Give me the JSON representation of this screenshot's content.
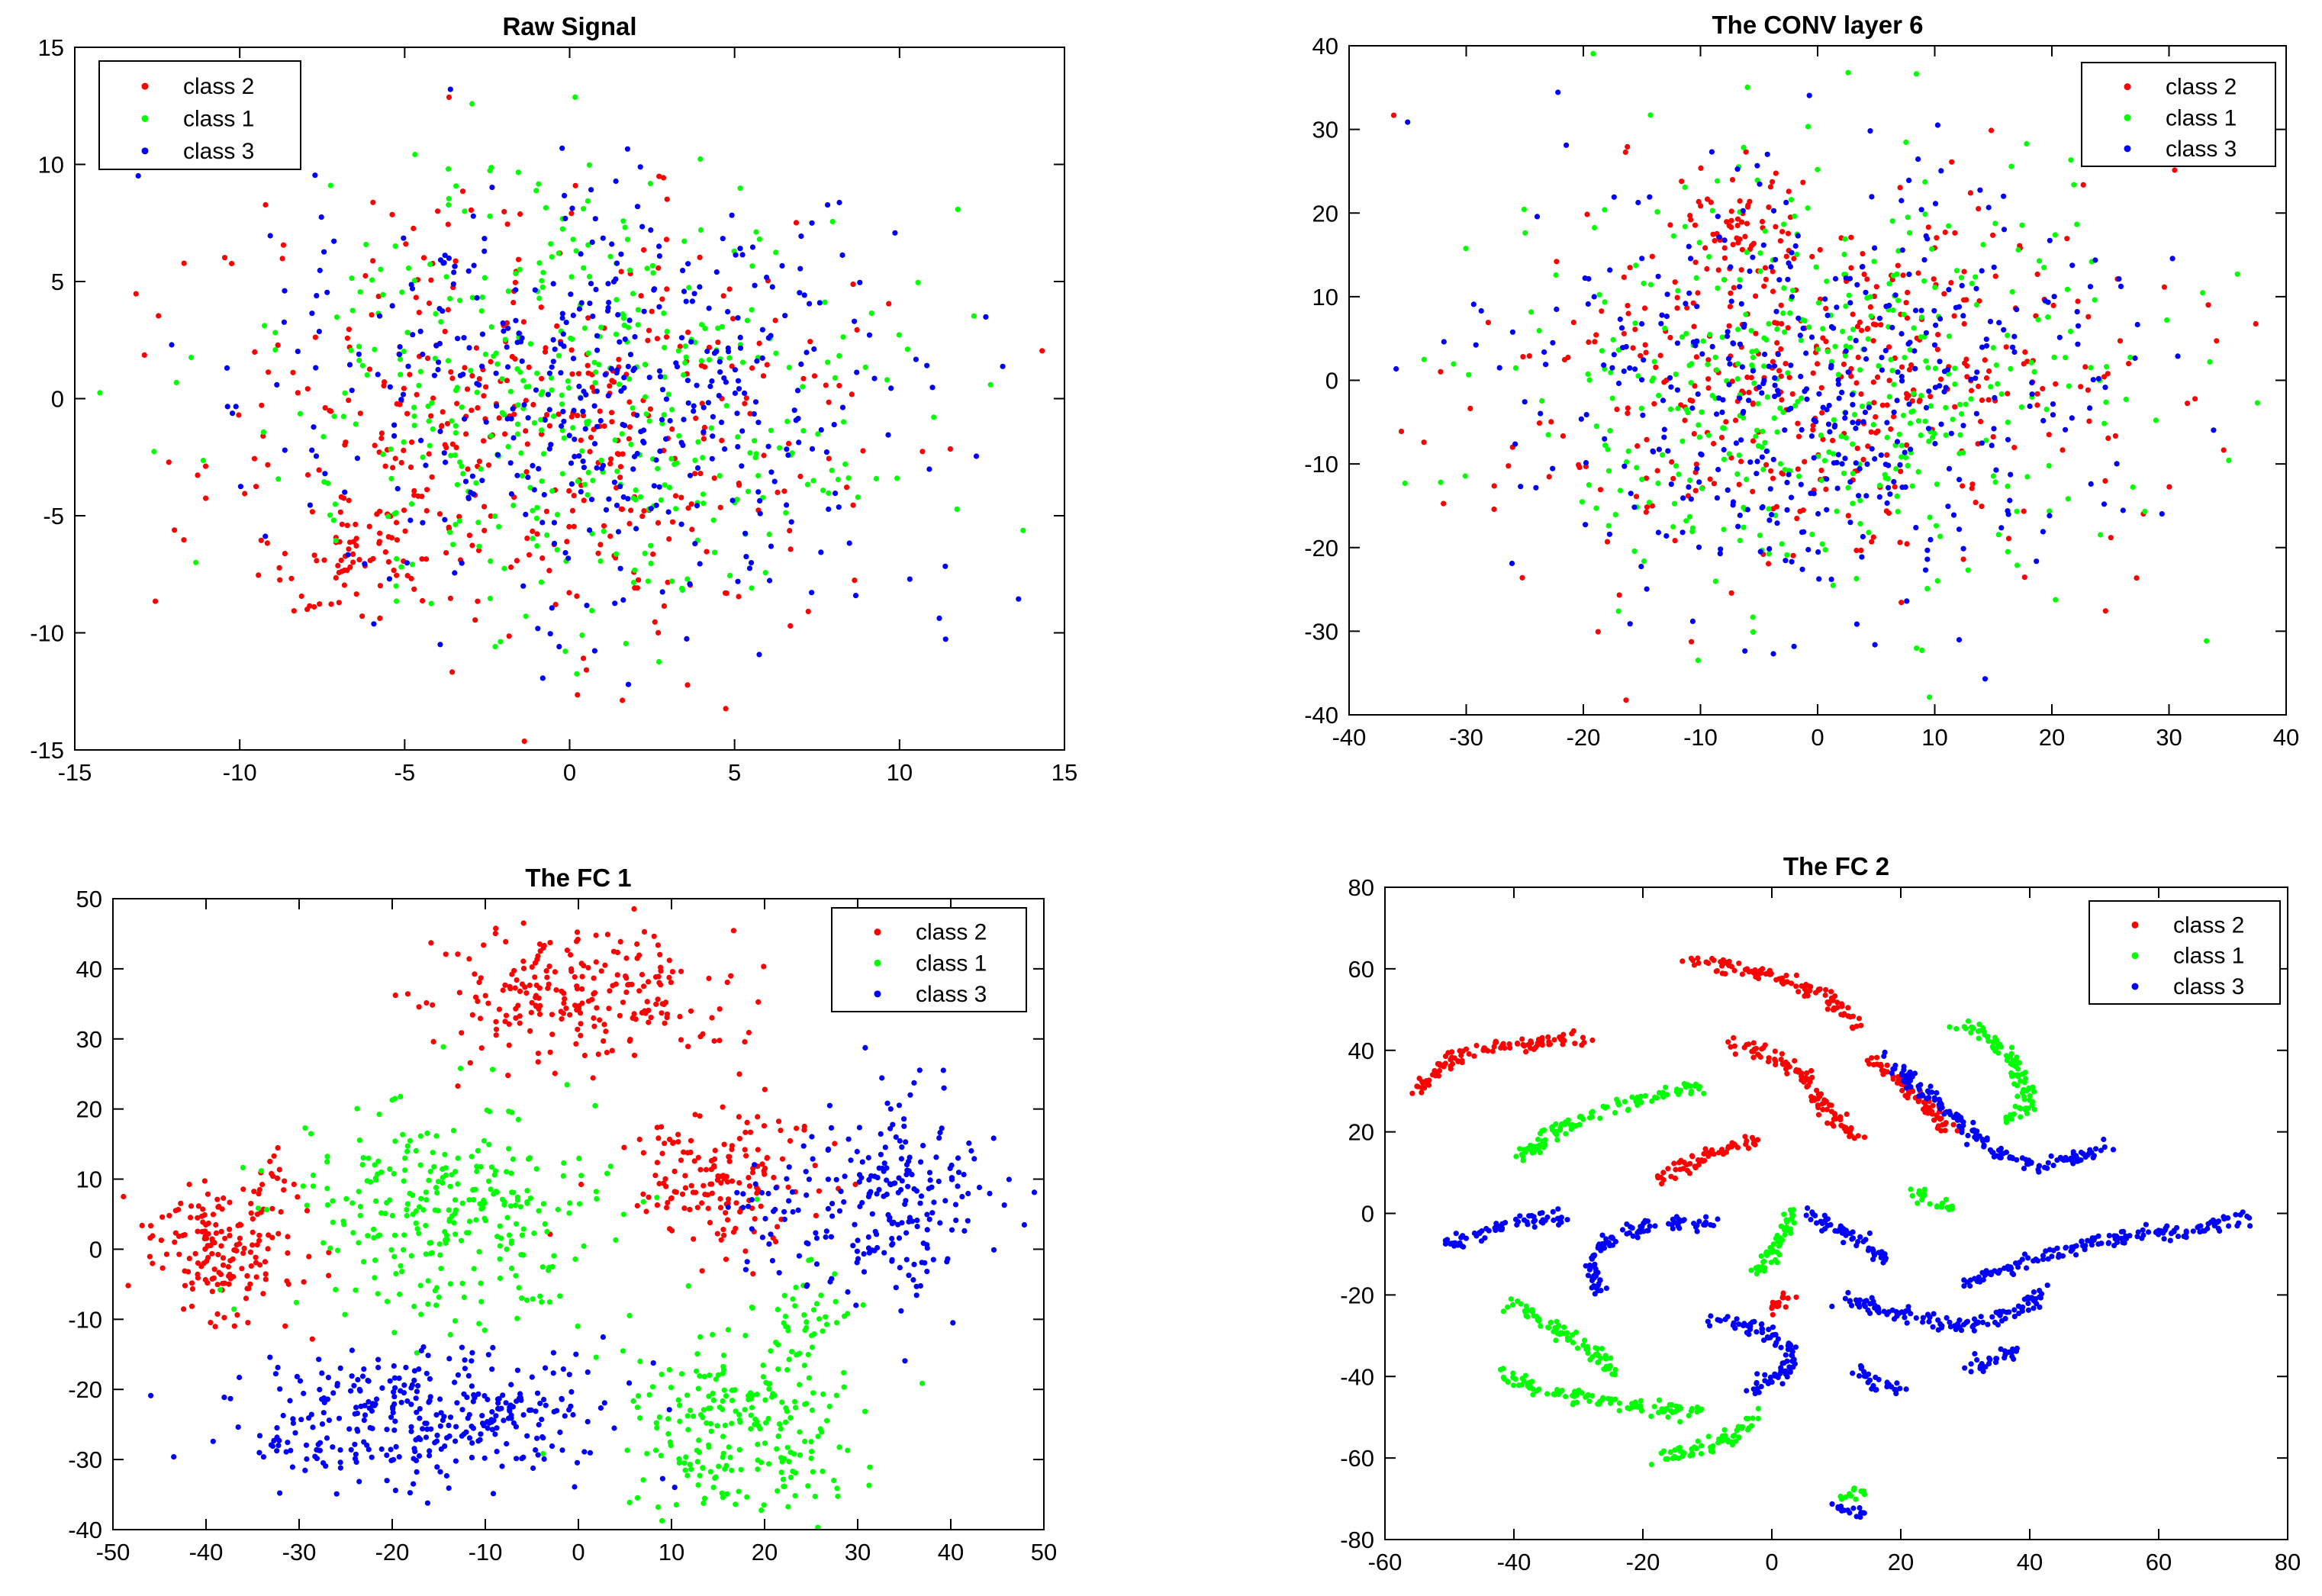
{
  "figure": {
    "background": "#ffffff",
    "class_colors": {
      "class 2": "#ff0000",
      "class 1": "#00ff00",
      "class 3": "#0000ff"
    }
  },
  "chart_data": [
    {
      "type": "scatter",
      "title": "Raw Signal",
      "xlabel": "",
      "ylabel": "",
      "xlim": [
        -15,
        15
      ],
      "ylim": [
        -15,
        15
      ],
      "xticks": [
        -15,
        -10,
        -5,
        0,
        5,
        10,
        15
      ],
      "yticks": [
        -15,
        -10,
        -5,
        0,
        5,
        10,
        15
      ],
      "xtick_labels": [
        "-15",
        "-10",
        "-5",
        "0",
        "5",
        "10",
        "15"
      ],
      "ytick_labels": [
        "-15",
        "-10",
        "-5",
        "0",
        "5",
        "10",
        "15"
      ],
      "grid": false,
      "legend_placement": "top-left",
      "legend": [
        "class 2",
        "class 1",
        "class 3"
      ],
      "series": [
        {
          "name": "class 2",
          "color": "#ff0000",
          "clusters": [
            {
              "cx": -1,
              "cy": -1,
              "sx": 4.8,
              "sy": 4.6,
              "n": 420
            },
            {
              "cx": -6.5,
              "cy": -6.5,
              "sx": 1.2,
              "sy": 1.2,
              "n": 60
            }
          ]
        },
        {
          "name": "class 1",
          "color": "#00ff00",
          "clusters": [
            {
              "cx": 0,
              "cy": 0,
              "sx": 4.8,
              "sy": 4.6,
              "n": 420
            }
          ]
        },
        {
          "name": "class 3",
          "color": "#0000ff",
          "clusters": [
            {
              "cx": 1,
              "cy": 0,
              "sx": 4.8,
              "sy": 4.6,
              "n": 450
            }
          ]
        }
      ]
    },
    {
      "type": "scatter",
      "title": "The CONV layer 6",
      "xlabel": "",
      "ylabel": "",
      "xlim": [
        -40,
        40
      ],
      "ylim": [
        -40,
        40
      ],
      "xticks": [
        -40,
        -30,
        -20,
        -10,
        0,
        10,
        20,
        30,
        40
      ],
      "yticks": [
        -40,
        -30,
        -20,
        -10,
        0,
        10,
        20,
        30,
        40
      ],
      "xtick_labels": [
        "-40",
        "-30",
        "-20",
        "-10",
        "0",
        "10",
        "20",
        "30",
        "40"
      ],
      "ytick_labels": [
        "-40",
        "-30",
        "-20",
        "-10",
        "0",
        "10",
        "20",
        "30",
        "40"
      ],
      "grid": false,
      "legend_placement": "top-right",
      "legend": [
        "class 2",
        "class 1",
        "class 3"
      ],
      "series": [
        {
          "name": "class 2",
          "color": "#ff0000",
          "clusters": [
            {
              "cx": 0,
              "cy": 0,
              "sx": 13,
              "sy": 12,
              "n": 420
            },
            {
              "cx": -8,
              "cy": 17,
              "sx": 2.5,
              "sy": 3,
              "n": 50
            }
          ]
        },
        {
          "name": "class 1",
          "color": "#00ff00",
          "clusters": [
            {
              "cx": 0,
              "cy": 0,
              "sx": 13,
              "sy": 12,
              "n": 430
            }
          ]
        },
        {
          "name": "class 3",
          "color": "#0000ff",
          "clusters": [
            {
              "cx": 0,
              "cy": 0,
              "sx": 13,
              "sy": 12,
              "n": 450
            }
          ]
        }
      ]
    },
    {
      "type": "scatter",
      "title": "The FC 1",
      "xlabel": "",
      "ylabel": "",
      "xlim": [
        -50,
        50
      ],
      "ylim": [
        -40,
        50
      ],
      "xticks": [
        -50,
        -40,
        -30,
        -20,
        -10,
        0,
        10,
        20,
        30,
        40,
        50
      ],
      "yticks": [
        -40,
        -30,
        -20,
        -10,
        0,
        10,
        20,
        30,
        40,
        50
      ],
      "xtick_labels": [
        "-50",
        "-40",
        "-30",
        "-20",
        "-10",
        "0",
        "10",
        "20",
        "30",
        "40",
        "50"
      ],
      "ytick_labels": [
        "-40",
        "-30",
        "-20",
        "-10",
        "0",
        "10",
        "20",
        "30",
        "40",
        "50"
      ],
      "grid": false,
      "legend_placement": "top-right",
      "legend": [
        "class 2",
        "class 1",
        "class 3"
      ],
      "series": [
        {
          "name": "class 2",
          "color": "#ff0000",
          "clusters": [
            {
              "cx": 0,
              "cy": 36,
              "sx": 8,
              "sy": 5,
              "n": 230
            },
            {
              "cx": 15,
              "cy": 10,
              "sx": 6,
              "sy": 5,
              "n": 160
            },
            {
              "cx": -38,
              "cy": -1,
              "sx": 4,
              "sy": 5,
              "n": 170
            },
            {
              "cx": -32,
              "cy": 10,
              "sx": 1.5,
              "sy": 2,
              "n": 12
            }
          ]
        },
        {
          "name": "class 1",
          "color": "#00ff00",
          "clusters": [
            {
              "cx": -13,
              "cy": 5,
              "sx": 8,
              "sy": 8,
              "n": 300
            },
            {
              "cx": 18,
              "cy": -25,
              "sx": 6,
              "sy": 6,
              "n": 230
            },
            {
              "cx": 24,
              "cy": -10,
              "sx": 3,
              "sy": 4,
              "n": 40
            }
          ]
        },
        {
          "name": "class 3",
          "color": "#0000ff",
          "clusters": [
            {
              "cx": -15,
              "cy": -24,
              "sx": 10,
              "sy": 5,
              "n": 330
            },
            {
              "cx": 35,
              "cy": 8,
              "sx": 5,
              "sy": 7,
              "n": 190
            },
            {
              "cx": 22,
              "cy": 5,
              "sx": 4,
              "sy": 6,
              "n": 50
            },
            {
              "cx": -30,
              "cy": -29,
              "sx": 2,
              "sy": 1.5,
              "n": 20
            }
          ]
        }
      ]
    },
    {
      "type": "scatter",
      "title": "The FC 2",
      "xlabel": "",
      "ylabel": "",
      "xlim": [
        -60,
        80
      ],
      "ylim": [
        -80,
        80
      ],
      "xticks": [
        -60,
        -40,
        -20,
        0,
        20,
        40,
        60,
        80
      ],
      "yticks": [
        -80,
        -60,
        -40,
        -20,
        0,
        20,
        40,
        60,
        80
      ],
      "xtick_labels": [
        "-60",
        "-40",
        "-20",
        "0",
        "20",
        "40",
        "60",
        "80"
      ],
      "ytick_labels": [
        "-80",
        "-60",
        "-40",
        "-20",
        "0",
        "20",
        "40",
        "60",
        "80"
      ],
      "grid": false,
      "legend_placement": "top-right",
      "legend": [
        "class 2",
        "class 1",
        "class 3"
      ],
      "series": [
        {
          "name": "class 2",
          "color": "#ff0000",
          "curves": [
            [
              [
                -55,
                30
              ],
              [
                -50,
                38
              ],
              [
                -44,
                41
              ],
              [
                -36,
                42
              ],
              [
                -28,
                43
              ]
            ],
            [
              [
                -18,
                9
              ],
              [
                -14,
                11
              ],
              [
                -10,
                14
              ],
              [
                -5,
                17
              ],
              [
                -2,
                18
              ]
            ],
            [
              [
                -13,
                62
              ],
              [
                -6,
                61
              ],
              [
                2,
                58
              ],
              [
                9,
                53
              ],
              [
                13,
                46
              ]
            ],
            [
              [
                -7,
                42
              ],
              [
                0,
                39
              ],
              [
                5,
                33
              ],
              [
                9,
                25
              ],
              [
                13,
                18
              ]
            ],
            [
              [
                15,
                38
              ],
              [
                20,
                33
              ],
              [
                24,
                26
              ],
              [
                28,
                20
              ]
            ],
            [
              [
                -1,
                -24
              ],
              [
                1,
                -22
              ],
              [
                3,
                -20
              ]
            ]
          ]
        },
        {
          "name": "class 1",
          "color": "#00ff00",
          "curves": [
            [
              [
                -40,
                13
              ],
              [
                -33,
                21
              ],
              [
                -25,
                26
              ],
              [
                -18,
                29
              ],
              [
                -11,
                31
              ]
            ],
            [
              [
                -40,
                -22
              ],
              [
                -34,
                -28
              ],
              [
                -28,
                -34
              ],
              [
                -24,
                -40
              ]
            ],
            [
              [
                -42,
                -40
              ],
              [
                -34,
                -44
              ],
              [
                -26,
                -46
              ],
              [
                -18,
                -48
              ],
              [
                -10,
                -49
              ]
            ],
            [
              [
                -19,
                -60
              ],
              [
                -12,
                -58
              ],
              [
                -6,
                -55
              ],
              [
                -2,
                -50
              ]
            ],
            [
              [
                -3,
                -15
              ],
              [
                0,
                -10
              ],
              [
                2,
                -4
              ],
              [
                3,
                1
              ]
            ],
            [
              [
                29,
                46
              ],
              [
                33,
                44
              ],
              [
                37,
                38
              ],
              [
                39,
                32
              ],
              [
                40,
                26
              ],
              [
                36,
                23
              ]
            ],
            [
              [
                22,
                5
              ],
              [
                25,
                3
              ],
              [
                28,
                2
              ]
            ],
            [
              [
                11,
                -70
              ],
              [
                13,
                -69
              ],
              [
                14,
                -68
              ]
            ]
          ]
        },
        {
          "name": "class 3",
          "color": "#0000ff",
          "curves": [
            [
              [
                -50,
                -8
              ],
              [
                -45,
                -5
              ],
              [
                -40,
                -2
              ],
              [
                -35,
                -1
              ],
              [
                -32,
                0
              ]
            ],
            [
              [
                -27,
                -20
              ],
              [
                -28,
                -11
              ],
              [
                -25,
                -6
              ],
              [
                -20,
                -3
              ],
              [
                -14,
                -2
              ],
              [
                -9,
                -2
              ]
            ],
            [
              [
                17,
                38
              ],
              [
                23,
                31
              ],
              [
                29,
                23
              ],
              [
                35,
                15
              ],
              [
                41,
                12
              ],
              [
                47,
                14
              ],
              [
                53,
                16
              ]
            ],
            [
              [
                5,
                0
              ],
              [
                10,
                -3
              ],
              [
                15,
                -8
              ],
              [
                18,
                -11
              ]
            ],
            [
              [
                10,
                -20
              ],
              [
                18,
                -24
              ],
              [
                25,
                -27
              ],
              [
                32,
                -27
              ],
              [
                38,
                -24
              ],
              [
                43,
                -19
              ]
            ],
            [
              [
                30,
                -17
              ],
              [
                40,
                -11
              ],
              [
                50,
                -7
              ],
              [
                60,
                -5
              ],
              [
                68,
                -3
              ],
              [
                74,
                -2
              ]
            ],
            [
              [
                -10,
                -26
              ],
              [
                -2,
                -28
              ],
              [
                3,
                -33
              ],
              [
                2,
                -40
              ],
              [
                -4,
                -43
              ]
            ],
            [
              [
                13,
                -38
              ],
              [
                16,
                -42
              ],
              [
                20,
                -43
              ]
            ],
            [
              [
                30,
                -38
              ],
              [
                34,
                -36
              ],
              [
                38,
                -34
              ]
            ],
            [
              [
                10,
                -72
              ],
              [
                13,
                -73
              ],
              [
                15,
                -74
              ]
            ]
          ]
        }
      ]
    }
  ]
}
